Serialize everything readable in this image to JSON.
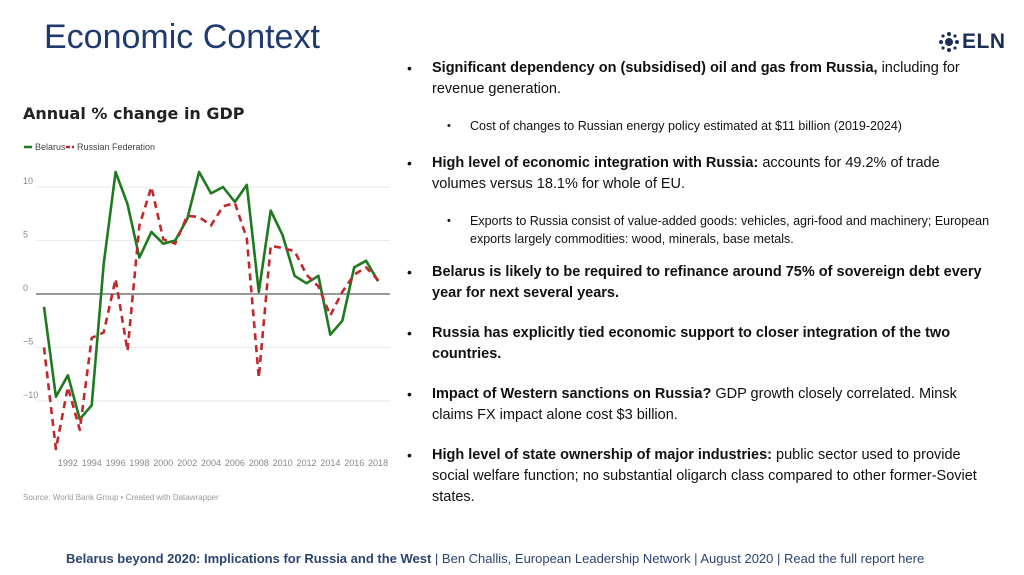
{
  "slide": {
    "title": "Economic Context",
    "logo_text": "ELN"
  },
  "bullets": [
    {
      "bold": "Significant dependency on (subsidised) oil and gas from Russia,",
      "text": " including for revenue generation."
    },
    {
      "sub": "Cost of changes to Russian energy policy estimated at $11 billion (2019-2024)"
    },
    {
      "bold": "High level of economic integration with Russia:",
      "text": " accounts for 49.2% of trade volumes versus 18.1% for whole of EU."
    },
    {
      "sub": "Exports to Russia consist of value-added goods: vehicles, agri-food and machinery; European exports largely commodities: wood, minerals, base metals."
    },
    {
      "bold": "Belarus is likely to be required to refinance around 75% of sovereign debt every year for next several years.",
      "text": ""
    },
    {
      "bold": "Russia has explicitly tied economic support to closer integration of the two countries.",
      "text": ""
    },
    {
      "bold": "Impact of Western sanctions on Russia?",
      "text": " GDP growth closely correlated. Minsk claims FX impact alone cost $3 billion."
    },
    {
      "bold": "High level of state ownership of major industries:",
      "text": " public sector used to provide social welfare function; no substantial oligarch class compared to other former-Soviet states."
    }
  ],
  "footer": {
    "bold": "Belarus beyond 2020: Implications for Russia and the West",
    "rest": " | Ben Challis, European Leadership Network | August 2020 | Read the full report here"
  },
  "chart_data": {
    "type": "line",
    "title": "Annual % change in GDP",
    "source": "Source: World Bank Group • Created with Datawrapper",
    "x": [
      1990,
      1991,
      1992,
      1993,
      1994,
      1995,
      1996,
      1997,
      1998,
      1999,
      2000,
      2001,
      2002,
      2003,
      2004,
      2005,
      2006,
      2007,
      2008,
      2009,
      2010,
      2011,
      2012,
      2013,
      2014,
      2015,
      2016,
      2017,
      2018,
      2019
    ],
    "xticks": [
      "1992",
      "1994",
      "1996",
      "1998",
      "2000",
      "2002",
      "2004",
      "2006",
      "2008",
      "2010",
      "2012",
      "2014",
      "2016",
      "2018"
    ],
    "yticks": [
      "10",
      "5",
      "0",
      "−5",
      "−10"
    ],
    "ylim": [
      -15,
      12
    ],
    "series": [
      {
        "name": "Belarus",
        "color": "#1f7a1f",
        "dash": false,
        "values": [
          -1.2,
          -9.6,
          -7.6,
          -11.7,
          -10.4,
          2.8,
          11.4,
          8.4,
          3.4,
          5.8,
          4.7,
          5.0,
          7.0,
          11.4,
          9.4,
          10.0,
          8.6,
          10.2,
          0.2,
          7.8,
          5.5,
          1.7,
          1.0,
          1.7,
          -3.8,
          -2.5,
          2.5,
          3.1,
          1.2,
          null
        ]
      },
      {
        "name": "Russian Federation",
        "color": "#c0282e",
        "dash": true,
        "values": [
          -5.0,
          -14.5,
          -8.7,
          -12.7,
          -4.1,
          -3.6,
          1.4,
          -5.3,
          6.4,
          10.0,
          5.1,
          4.7,
          7.3,
          7.2,
          6.4,
          8.2,
          8.5,
          5.2,
          -7.8,
          4.5,
          4.3,
          4.0,
          1.8,
          0.7,
          -2.0,
          0.2,
          1.8,
          2.5,
          1.3,
          null
        ]
      }
    ]
  }
}
